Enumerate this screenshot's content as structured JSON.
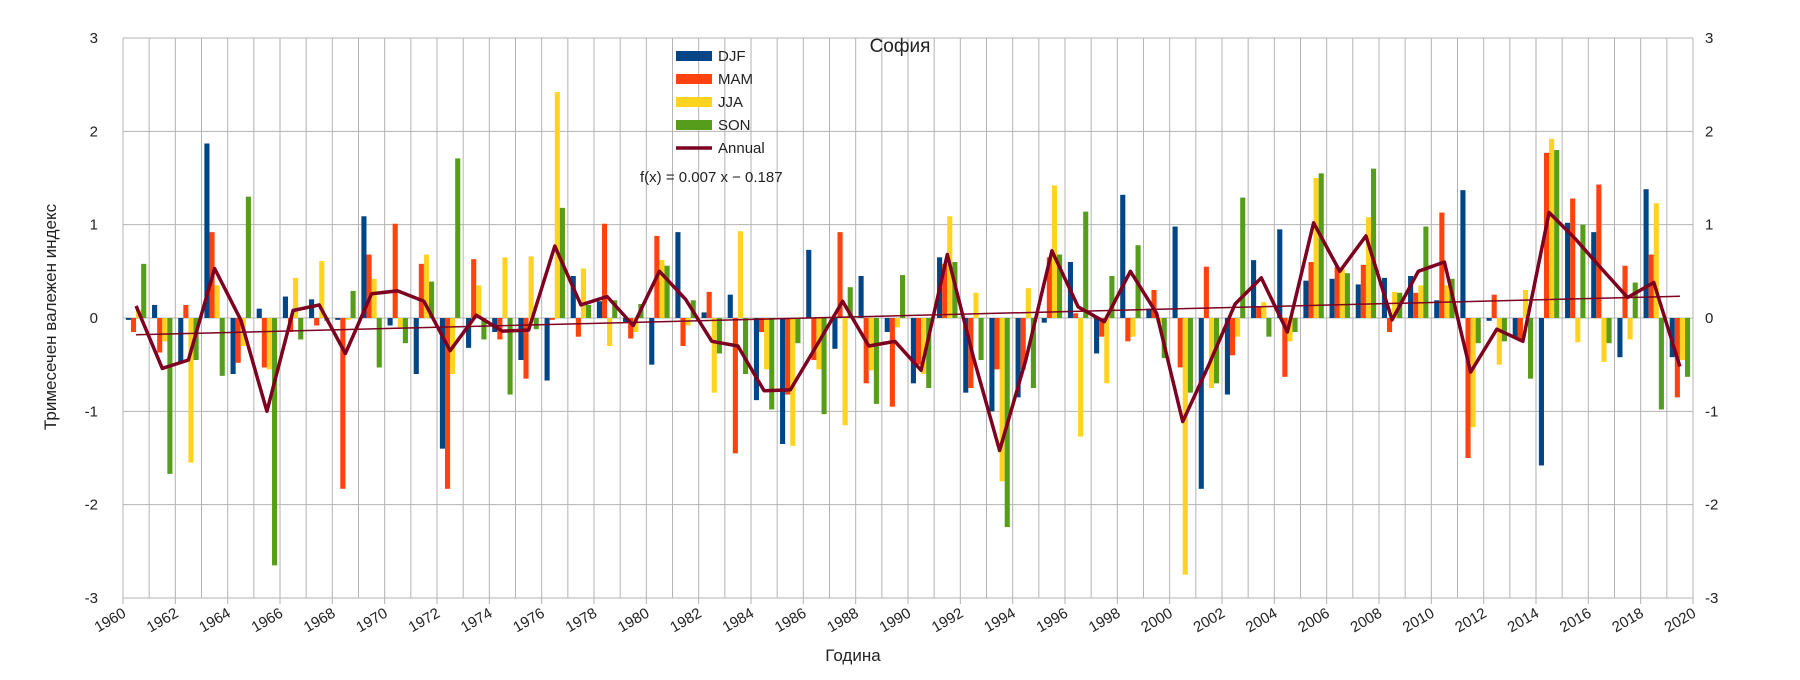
{
  "chart_data": {
    "type": "bar",
    "title": "София",
    "xlabel": "Година",
    "ylabel": "Тримесечен валежен индекс",
    "ylim": [
      -3,
      3
    ],
    "y_ticks": [
      -3,
      -2,
      -1,
      0,
      1,
      2,
      3
    ],
    "y_tick_labels": [
      "-3",
      "-2",
      "-1",
      "0",
      "1",
      "2",
      "3"
    ],
    "xlim": [
      1960,
      2020
    ],
    "x_ticks": [
      1960,
      1962,
      1964,
      1966,
      1968,
      1970,
      1972,
      1974,
      1976,
      1978,
      1980,
      1982,
      1984,
      1986,
      1988,
      1990,
      1992,
      1994,
      1996,
      1998,
      2000,
      2002,
      2004,
      2006,
      2008,
      2010,
      2012,
      2014,
      2016,
      2018,
      2020
    ],
    "x_tick_labels": [
      "1960",
      "1962",
      "1964",
      "1966",
      "1968",
      "1970",
      "1972",
      "1974",
      "1976",
      "1978",
      "1980",
      "1982",
      "1984",
      "1986",
      "1988",
      "1990",
      "1992",
      "1994",
      "1996",
      "1998",
      "2000",
      "2002",
      "2004",
      "2006",
      "2008",
      "2010",
      "2012",
      "2014",
      "2016",
      "2018",
      "2020"
    ],
    "grid": true,
    "legend_position": "top-center",
    "years": [
      1960,
      1961,
      1962,
      1963,
      1964,
      1965,
      1966,
      1967,
      1968,
      1969,
      1970,
      1971,
      1972,
      1973,
      1974,
      1975,
      1976,
      1977,
      1978,
      1979,
      1980,
      1981,
      1982,
      1983,
      1984,
      1985,
      1986,
      1987,
      1988,
      1989,
      1990,
      1991,
      1992,
      1993,
      1994,
      1995,
      1996,
      1997,
      1998,
      1999,
      2000,
      2001,
      2002,
      2003,
      2004,
      2005,
      2006,
      2007,
      2008,
      2009,
      2010,
      2011,
      2012,
      2013,
      2014,
      2015,
      2016,
      2017,
      2018,
      2019
    ],
    "series": [
      {
        "name": "DJF",
        "color": "#004586",
        "values": [
          -0.02,
          0.14,
          -0.48,
          1.87,
          -0.6,
          0.1,
          0.23,
          0.2,
          -0.02,
          1.09,
          -0.08,
          -0.6,
          -1.4,
          -0.32,
          -0.15,
          -0.45,
          -0.67,
          0.45,
          0.18,
          -0.05,
          -0.5,
          0.92,
          0.06,
          0.25,
          -0.88,
          -1.35,
          0.73,
          -0.33,
          0.45,
          -0.15,
          -0.7,
          0.65,
          -0.8,
          -1.0,
          -0.85,
          -0.05,
          0.6,
          -0.38,
          1.32,
          0.1,
          0.98,
          -1.83,
          -0.82,
          0.62,
          0.95,
          0.4,
          0.42,
          0.36,
          0.43,
          0.45,
          0.19,
          1.37,
          -0.03,
          -0.22,
          -1.58,
          1.02,
          0.92,
          -0.42,
          1.38,
          -0.42
        ]
      },
      {
        "name": "MAM",
        "color": "#ff420e",
        "values": [
          -0.15,
          -0.37,
          0.14,
          0.92,
          -0.48,
          -0.53,
          -0.15,
          -0.08,
          -1.83,
          0.68,
          1.01,
          0.58,
          -1.83,
          0.63,
          -0.23,
          -0.65,
          -0.02,
          -0.2,
          1.01,
          -0.22,
          0.88,
          -0.3,
          0.28,
          -1.45,
          -0.15,
          -0.82,
          -0.45,
          0.92,
          -0.7,
          -0.95,
          -0.5,
          0.58,
          -0.75,
          -0.55,
          -0.55,
          0.65,
          0.05,
          -0.2,
          -0.25,
          0.3,
          -0.53,
          0.55,
          -0.4,
          0.12,
          -0.63,
          0.6,
          0.55,
          0.57,
          -0.15,
          0.27,
          1.13,
          -1.5,
          0.25,
          -0.25,
          1.77,
          1.28,
          1.43,
          0.56,
          0.68,
          -0.85
        ]
      },
      {
        "name": "JJA",
        "color": "#ffd320",
        "values": [
          0.08,
          -0.25,
          -1.55,
          0.35,
          -0.3,
          -0.55,
          0.43,
          0.61,
          -0.02,
          0.42,
          -0.1,
          0.68,
          -0.6,
          0.35,
          0.65,
          0.66,
          2.42,
          0.53,
          -0.3,
          -0.15,
          0.62,
          -0.08,
          -0.8,
          0.93,
          -0.55,
          -1.37,
          -0.55,
          -1.15,
          -0.56,
          -0.1,
          -0.6,
          1.09,
          0.27,
          -1.75,
          0.32,
          1.42,
          -1.27,
          -0.7,
          -0.2,
          -0.05,
          -2.75,
          -0.75,
          -0.2,
          0.17,
          -0.25,
          1.5,
          0.52,
          1.08,
          0.28,
          0.35,
          0.35,
          -1.17,
          -0.5,
          0.3,
          1.92,
          -0.26,
          -0.47,
          -0.23,
          1.23,
          -0.45
        ]
      },
      {
        "name": "SON",
        "color": "#579d1c",
        "values": [
          0.58,
          -1.67,
          -0.45,
          -0.62,
          1.3,
          -2.65,
          -0.23,
          -0.03,
          0.29,
          -0.53,
          -0.27,
          0.39,
          1.71,
          -0.23,
          -0.82,
          -0.12,
          1.18,
          0.14,
          0.19,
          0.15,
          0.56,
          0.19,
          -0.38,
          -0.6,
          -0.98,
          -0.27,
          -1.03,
          0.33,
          -0.92,
          0.46,
          -0.75,
          0.6,
          -0.45,
          -2.24,
          -0.75,
          0.68,
          1.14,
          0.45,
          0.78,
          -0.43,
          -0.8,
          -0.7,
          1.29,
          -0.2,
          -0.15,
          1.55,
          0.48,
          1.6,
          0.27,
          0.98,
          0.42,
          -0.27,
          -0.25,
          -0.65,
          1.8,
          1.0,
          -0.27,
          0.38,
          -0.98,
          -0.63
        ]
      }
    ],
    "annual": {
      "name": "Annual",
      "color": "#7e0021",
      "values": [
        0.13,
        -0.54,
        -0.45,
        0.53,
        -0.02,
        -1.0,
        0.08,
        0.14,
        -0.38,
        0.26,
        0.29,
        0.18,
        -0.35,
        0.03,
        -0.14,
        -0.13,
        0.77,
        0.14,
        0.23,
        -0.08,
        0.5,
        0.2,
        -0.25,
        -0.3,
        -0.78,
        -0.77,
        -0.3,
        0.18,
        -0.3,
        -0.25,
        -0.56,
        0.68,
        -0.42,
        -1.42,
        -0.45,
        0.72,
        0.12,
        -0.04,
        0.5,
        0.05,
        -1.11,
        -0.5,
        0.15,
        0.43,
        -0.15,
        1.02,
        0.5,
        0.88,
        -0.02,
        0.5,
        0.6,
        -0.58,
        -0.12,
        -0.25,
        1.13,
        0.85,
        0.53,
        0.22,
        0.38,
        -0.52
      ]
    },
    "trendline": {
      "label": "f(x) = 0.007 x − 0.187",
      "slope": 0.007,
      "intercept": -0.187,
      "color": "#7e0021"
    }
  }
}
